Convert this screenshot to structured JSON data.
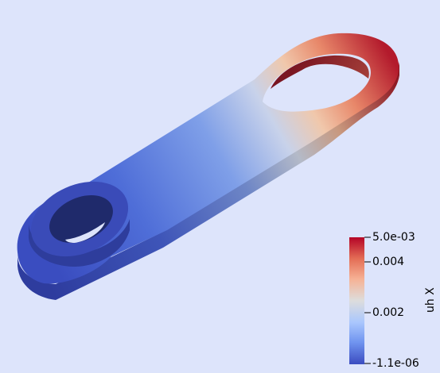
{
  "colorbar": {
    "title": "uh X",
    "max_label": "5.0e-03",
    "min_label": "-1.1e-06",
    "ticks": [
      {
        "label": "0.004",
        "value": 0.004
      },
      {
        "label": "0.002",
        "value": 0.002
      }
    ],
    "range": [
      -1.1e-06,
      0.005
    ],
    "colormap": [
      "#3b4cc0",
      "#6f93ef",
      "#aac7fd",
      "#dddddd",
      "#f6b295",
      "#e46e56",
      "#b40426"
    ]
  },
  "colors": {
    "background": "#dde4fb"
  }
}
